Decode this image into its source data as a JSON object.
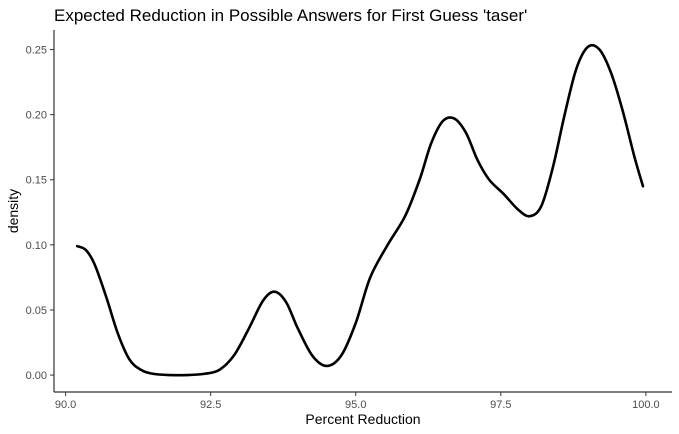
{
  "chart_data": {
    "type": "line",
    "title": "Expected Reduction in Possible Answers for First Guess 'taser'",
    "xlabel": "Percent Reduction",
    "ylabel": "density",
    "xlim": [
      89.8,
      100.45
    ],
    "ylim": [
      -0.013,
      0.265
    ],
    "xticks": [
      90.0,
      92.5,
      95.0,
      97.5,
      100.0
    ],
    "xtick_labels": [
      "90.0",
      "92.5",
      "95.0",
      "97.5",
      "100.0"
    ],
    "yticks": [
      0.0,
      0.05,
      0.1,
      0.15,
      0.2,
      0.25
    ],
    "ytick_labels": [
      "0.00",
      "0.05",
      "0.10",
      "0.15",
      "0.20",
      "0.25"
    ],
    "grid": false,
    "series": [
      {
        "color": "#000000",
        "x": [
          90.2,
          90.35,
          90.5,
          90.7,
          90.9,
          91.1,
          91.3,
          91.5,
          91.8,
          92.1,
          92.4,
          92.65,
          92.9,
          93.15,
          93.4,
          93.6,
          93.8,
          94.0,
          94.25,
          94.5,
          94.75,
          95.0,
          95.25,
          95.55,
          95.85,
          96.1,
          96.3,
          96.5,
          96.7,
          96.9,
          97.1,
          97.3,
          97.55,
          97.8,
          98.0,
          98.2,
          98.4,
          98.6,
          98.8,
          99.0,
          99.2,
          99.4,
          99.6,
          99.8,
          99.95
        ],
        "y": [
          0.099,
          0.096,
          0.085,
          0.06,
          0.032,
          0.012,
          0.004,
          0.001,
          0.0,
          0.0,
          0.001,
          0.004,
          0.015,
          0.035,
          0.057,
          0.064,
          0.056,
          0.036,
          0.015,
          0.007,
          0.015,
          0.04,
          0.075,
          0.1,
          0.122,
          0.15,
          0.178,
          0.195,
          0.197,
          0.186,
          0.165,
          0.15,
          0.139,
          0.127,
          0.122,
          0.13,
          0.16,
          0.2,
          0.235,
          0.252,
          0.25,
          0.232,
          0.203,
          0.168,
          0.145
        ]
      }
    ]
  }
}
